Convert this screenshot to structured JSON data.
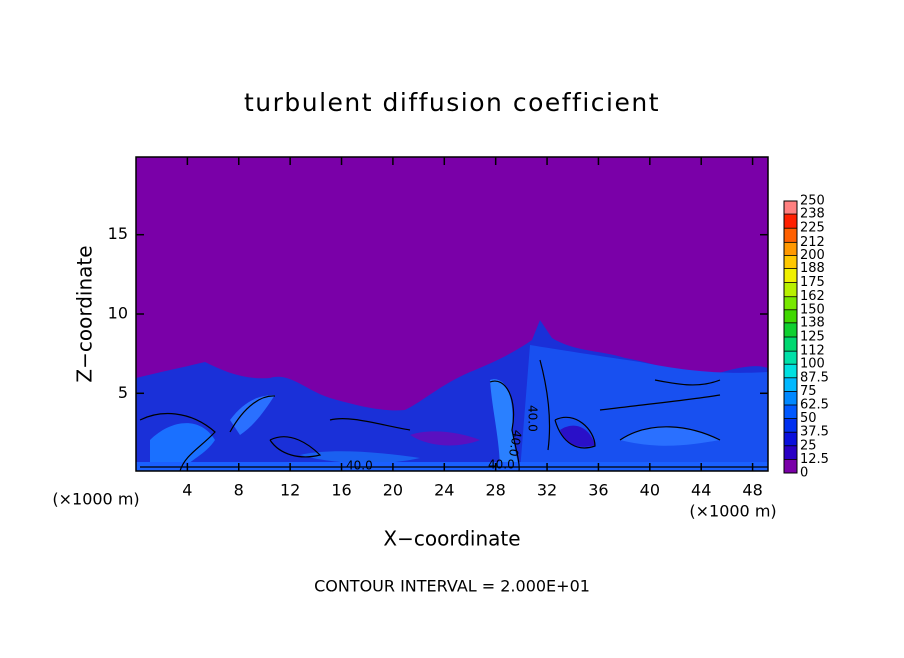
{
  "chart_data": {
    "type": "contour",
    "title": "turbulent diffusion coefficient",
    "xlabel": "X−coordinate",
    "ylabel": "Z−coordinate",
    "x_unit": "(×1000 m)",
    "xlim": [
      0,
      49.2
    ],
    "ylim": [
      0.1,
      19.9
    ],
    "xticks": [
      4,
      8,
      12,
      16,
      20,
      24,
      28,
      32,
      36,
      40,
      44,
      48
    ],
    "yticks": [
      5,
      10,
      15
    ],
    "contour_labels": [
      "40.0",
      "40.0",
      "40.0",
      "40.0"
    ],
    "footnote": "CONTOUR INTERVAL = 2.000E+01",
    "colorbar": {
      "ticks": [
        0,
        12.5,
        25,
        37.5,
        50,
        62.5,
        75,
        87.5,
        100,
        112,
        125,
        138,
        150,
        162,
        175,
        188,
        200,
        212,
        225,
        238,
        250
      ],
      "colors": [
        "#7a00a8",
        "#2a00c4",
        "#0a10dc",
        "#0030f0",
        "#0058ff",
        "#0088ff",
        "#00b8ff",
        "#00e0e0",
        "#00e0a8",
        "#00d870",
        "#10d030",
        "#40d800",
        "#78e800",
        "#b8f000",
        "#f0f000",
        "#ffc800",
        "#ff9800",
        "#ff6000",
        "#ff2000",
        "#ff8080"
      ]
    }
  }
}
